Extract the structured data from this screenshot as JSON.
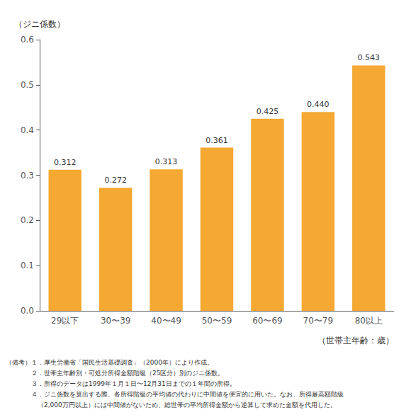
{
  "chart_data": {
    "type": "bar",
    "categories": [
      "29以下",
      "30〜39",
      "40〜49",
      "50〜59",
      "60〜69",
      "70〜79",
      "80以上"
    ],
    "values": [
      0.312,
      0.272,
      0.313,
      0.361,
      0.425,
      0.44,
      0.543
    ],
    "value_labels": [
      "0.312",
      "0.272",
      "0.313",
      "0.361",
      "0.425",
      "0.440",
      "0.543"
    ],
    "data_labels": true,
    "color": "#F5A832",
    "ylabel": "（ジニ係数）",
    "xlabel": "（世帯主年齢：歳）",
    "ylim": [
      0.0,
      0.6
    ],
    "yticks": [
      {
        "value": 0.0,
        "label": "0.0"
      },
      0.1,
      0.2,
      0.3,
      0.4,
      0.5,
      0.6
    ],
    "grid": false,
    "annotations": [
      "（備考）１．厚生労働省「国民生活基礎調査」（2000年）により作成。",
      "　　　　２．世帯主年齢別・可処分所得金額階級（25区分）別のジニ係数。",
      "　　　　３．所得のデータは1999年１月１日〜12月31日までの１年間の所得。",
      "　　　　４．ジニ係数を算出する際、各所得階級の平均値の代わりに中間値を便宜的に用いた。なお、所得最高額階級",
      "　　　　　（2,000万円以上）には中間値がないため、総世帯の平均所得金額から逆算して求めた金額を代用した。"
    ]
  }
}
